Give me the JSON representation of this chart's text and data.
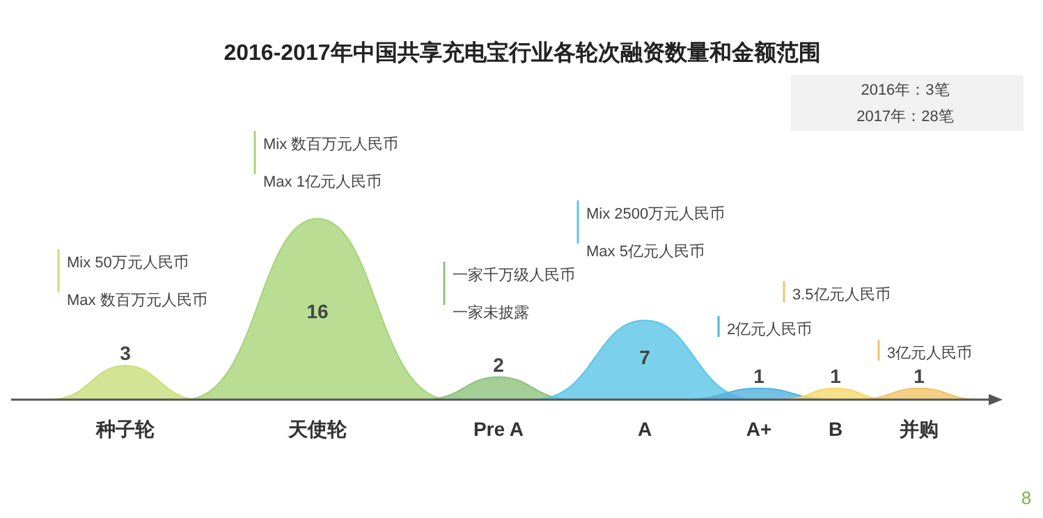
{
  "chart_data": {
    "type": "other",
    "title": "2016-2017年中国共享充电宝行业各轮次融资数量和金额范围",
    "categories": [
      "种子轮",
      "天使轮",
      "Pre A",
      "A",
      "A+",
      "B",
      "并购"
    ],
    "values": [
      3,
      16,
      2,
      7,
      1,
      1,
      1
    ],
    "colors": [
      "#c8df7a",
      "#a6d478",
      "#8cc27c",
      "#5ac6e6",
      "#52b2dc",
      "#f4d86c",
      "#f0c466"
    ],
    "data_labels": true,
    "annotations": [
      "Mix   50万元人民币",
      "Max  数百万元人民币",
      "Mix   数百万元人民币",
      "Max  1亿元人民币",
      "一家千万级人民币",
      "一家未披露",
      "Mix   2500万元人民币",
      "Max  5亿元人民币",
      "3.5亿元人民币",
      "2亿元人民币",
      "3亿元人民币",
      "2016年：3笔",
      "2017年：28笔",
      "8"
    ]
  }
}
